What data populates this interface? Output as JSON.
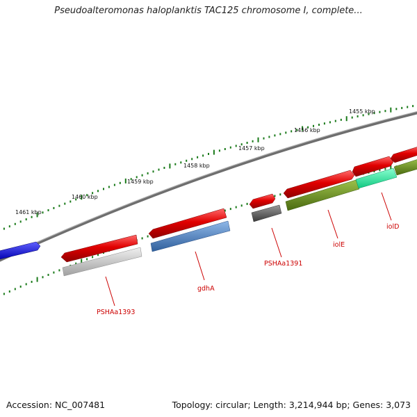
{
  "title": "Pseudoalteromonas haloplanktis TAC125 chromosome I, complete...",
  "footer": {
    "accession": "Accession: NC_007481",
    "summary": "Topology: circular; Length: 3,214,944 bp; Genes: 3,073"
  },
  "ticks": [
    {
      "label": "1455 kbp"
    },
    {
      "label": "1456 kbp"
    },
    {
      "label": "1457 kbp"
    },
    {
      "label": "1458 kbp"
    },
    {
      "label": "1459 kbp"
    },
    {
      "label": "1460 kbp"
    },
    {
      "label": "1461 kbp"
    }
  ],
  "genes": [
    {
      "label": "PSHAa1393"
    },
    {
      "label": "gdhA"
    },
    {
      "label": "PSHAa1391"
    },
    {
      "label": "iolE"
    },
    {
      "label": "iolD"
    }
  ],
  "colors": {
    "backbone": "#7a7a7a",
    "tick": "#1a7a1a",
    "gene_red": "#e00000",
    "cds_gray": "#c8c8c8",
    "cds_blue": "#4a80c0",
    "cds_dark": "#606060",
    "cds_olive": "#6b8c1e",
    "cds_cyan": "#22f0a0",
    "left_arrow": "#1010e0",
    "label": "#cc0000"
  }
}
